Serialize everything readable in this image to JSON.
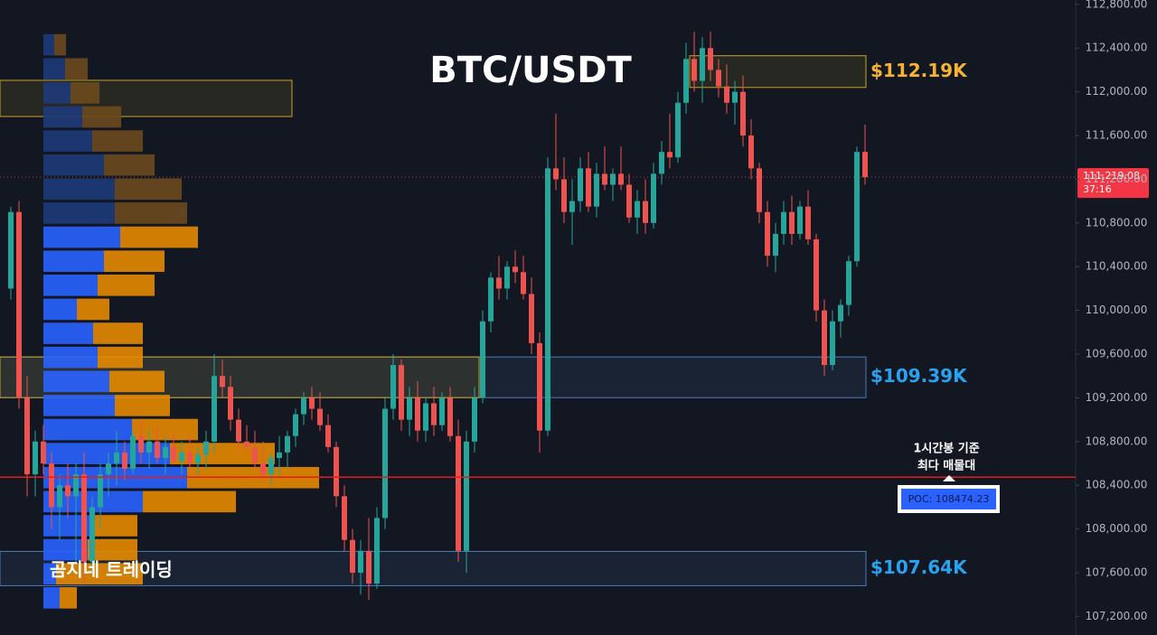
{
  "chart_data": {
    "type": "candlestick",
    "title": "BTC/USDT",
    "watermark": "곰지네 트레이딩",
    "annotation": [
      "1시간봉 기준",
      "최다 매물대"
    ],
    "ylim": [
      107030,
      112840
    ],
    "yticks": [
      {
        "value": 107200,
        "label": "107,200.00"
      },
      {
        "value": 107600,
        "label": "107,600.00"
      },
      {
        "value": 108000,
        "label": "108,000.00"
      },
      {
        "value": 108400,
        "label": "108,400.00"
      },
      {
        "value": 108800,
        "label": "108,800.00"
      },
      {
        "value": 109200,
        "label": "109,200.00"
      },
      {
        "value": 109600,
        "label": "109,600.00"
      },
      {
        "value": 110000,
        "label": "110,000.00"
      },
      {
        "value": 110400,
        "label": "110,400.00"
      },
      {
        "value": 110800,
        "label": "110,800.00"
      },
      {
        "value": 111200,
        "label": "111,200.00"
      },
      {
        "value": 111600,
        "label": "111,600.00"
      },
      {
        "value": 112000,
        "label": "112,000.00"
      },
      {
        "value": 112400,
        "label": "112,400.00"
      },
      {
        "value": 112800,
        "label": "112,800.00"
      }
    ],
    "up_color": "#26a69a",
    "down_color": "#ef5350",
    "candles": [
      [
        110200,
        110950,
        110100,
        110900
      ],
      [
        110900,
        111000,
        109100,
        109200
      ],
      [
        109200,
        109400,
        108300,
        108500
      ],
      [
        108500,
        108900,
        108300,
        108800
      ],
      [
        108800,
        108950,
        108500,
        108600
      ],
      [
        108600,
        108700,
        108000,
        108200
      ],
      [
        108200,
        108500,
        107900,
        108400
      ],
      [
        108400,
        108600,
        108100,
        108300
      ],
      [
        108300,
        108600,
        107700,
        108500
      ],
      [
        108500,
        108700,
        107500,
        107700
      ],
      [
        107700,
        108300,
        107600,
        108200
      ],
      [
        108200,
        108600,
        108000,
        108500
      ],
      [
        108500,
        108700,
        108300,
        108600
      ],
      [
        108600,
        108900,
        108400,
        108700
      ],
      [
        108700,
        108800,
        108450,
        108550
      ],
      [
        108550,
        108900,
        108500,
        108850
      ],
      [
        108850,
        109000,
        108600,
        108700
      ],
      [
        108700,
        108900,
        108550,
        108800
      ],
      [
        108800,
        108950,
        108600,
        108650
      ],
      [
        108650,
        108850,
        108500,
        108750
      ],
      [
        108750,
        108900,
        108600,
        108620
      ],
      [
        108620,
        108800,
        108500,
        108700
      ],
      [
        108700,
        108850,
        108550,
        108600
      ],
      [
        108600,
        108750,
        108500,
        108680
      ],
      [
        108680,
        108900,
        108550,
        108800
      ],
      [
        108800,
        109600,
        108700,
        109400
      ],
      [
        109400,
        109550,
        109200,
        109300
      ],
      [
        109300,
        109400,
        108900,
        109000
      ],
      [
        109000,
        109100,
        108700,
        108800
      ],
      [
        108800,
        108950,
        108700,
        108750
      ],
      [
        108750,
        108900,
        108550,
        108600
      ],
      [
        108600,
        108800,
        108450,
        108500
      ],
      [
        108500,
        108700,
        108400,
        108650
      ],
      [
        108650,
        108850,
        108500,
        108700
      ],
      [
        108700,
        108900,
        108550,
        108850
      ],
      [
        108850,
        109100,
        108750,
        109050
      ],
      [
        109050,
        109250,
        108950,
        109200
      ],
      [
        109200,
        109300,
        109000,
        109100
      ],
      [
        109100,
        109250,
        108900,
        108950
      ],
      [
        108950,
        109050,
        108700,
        108750
      ],
      [
        108750,
        108800,
        108200,
        108300
      ],
      [
        108300,
        108400,
        107800,
        107900
      ],
      [
        107900,
        108000,
        107500,
        107600
      ],
      [
        107600,
        107900,
        107400,
        107800
      ],
      [
        107800,
        108100,
        107350,
        107500
      ],
      [
        107500,
        108200,
        107450,
        108100
      ],
      [
        108100,
        109200,
        108000,
        109100
      ],
      [
        109100,
        109600,
        109000,
        109500
      ],
      [
        109500,
        109550,
        108900,
        109000
      ],
      [
        109000,
        109300,
        108850,
        109200
      ],
      [
        109200,
        109350,
        108800,
        108900
      ],
      [
        108900,
        109200,
        108800,
        109150
      ],
      [
        109150,
        109300,
        108850,
        108950
      ],
      [
        108950,
        109250,
        108900,
        109200
      ],
      [
        109200,
        109300,
        108800,
        108850
      ],
      [
        108850,
        109000,
        107700,
        107800
      ],
      [
        107800,
        108900,
        107600,
        108800
      ],
      [
        108800,
        109300,
        108700,
        109200
      ],
      [
        109200,
        110000,
        109150,
        109900
      ],
      [
        109900,
        110350,
        109800,
        110300
      ],
      [
        110300,
        110500,
        110100,
        110200
      ],
      [
        110200,
        110450,
        110100,
        110400
      ],
      [
        110400,
        110550,
        110250,
        110350
      ],
      [
        110350,
        110500,
        110100,
        110150
      ],
      [
        110150,
        110300,
        109600,
        109700
      ],
      [
        109700,
        109800,
        108700,
        108900
      ],
      [
        108900,
        111400,
        108850,
        111300
      ],
      [
        111300,
        111800,
        111100,
        111200
      ],
      [
        111200,
        111400,
        110800,
        110900
      ],
      [
        110900,
        111200,
        110600,
        111000
      ],
      [
        111000,
        111400,
        110900,
        111300
      ],
      [
        111300,
        111450,
        110900,
        110950
      ],
      [
        110950,
        111350,
        110850,
        111250
      ],
      [
        111250,
        111500,
        111100,
        111150
      ],
      [
        111150,
        111300,
        111000,
        111250
      ],
      [
        111250,
        111500,
        111100,
        111150
      ],
      [
        111150,
        111250,
        110800,
        110850
      ],
      [
        110850,
        111100,
        110700,
        111000
      ],
      [
        111000,
        111200,
        110700,
        110800
      ],
      [
        110800,
        111350,
        110750,
        111250
      ],
      [
        111250,
        111550,
        111150,
        111450
      ],
      [
        111450,
        111800,
        111300,
        111400
      ],
      [
        111400,
        112000,
        111350,
        111900
      ],
      [
        111900,
        112450,
        111800,
        112300
      ],
      [
        112300,
        112550,
        112000,
        112100
      ],
      [
        112100,
        112500,
        111900,
        112400
      ],
      [
        112400,
        112550,
        112100,
        112200
      ],
      [
        112200,
        112300,
        111950,
        112050
      ],
      [
        112050,
        112250,
        111800,
        111900
      ],
      [
        111900,
        112100,
        111700,
        112000
      ],
      [
        112000,
        112150,
        111500,
        111600
      ],
      [
        111600,
        111750,
        111200,
        111300
      ],
      [
        111300,
        111350,
        110800,
        110900
      ],
      [
        110900,
        111000,
        110400,
        110500
      ],
      [
        110500,
        110800,
        110350,
        110700
      ],
      [
        110700,
        111000,
        110600,
        110900
      ],
      [
        110900,
        111050,
        110600,
        110700
      ],
      [
        110700,
        111000,
        110650,
        110950
      ],
      [
        110950,
        111100,
        110600,
        110650
      ],
      [
        110650,
        110700,
        109900,
        110000
      ],
      [
        110000,
        110100,
        109400,
        109500
      ],
      [
        109500,
        110000,
        109450,
        109900
      ],
      [
        109900,
        110100,
        109750,
        110050
      ],
      [
        110050,
        110500,
        109950,
        110450
      ],
      [
        110450,
        111500,
        110400,
        111450
      ],
      [
        111450,
        111700,
        111150,
        111219.08
      ]
    ],
    "last_price": 111219.08,
    "last_price_label": "111,219.08",
    "countdown": "37:16",
    "poc": 108474.23,
    "poc_label": "POC: 108474.23",
    "poc_color": "#e01e1e",
    "zones": [
      {
        "top": 112330,
        "bottom": 112040,
        "color": "#c9a227",
        "label": "$112.19K",
        "label_color": "#f5b335"
      },
      {
        "top": 112105,
        "bottom": 111774,
        "color": "#c9a227"
      },
      {
        "top": 109574,
        "bottom": 109202,
        "color": "#4a7cb8",
        "label": "$109.39K",
        "label_color": "#29a3f0"
      },
      {
        "top": 109574,
        "bottom": 109202,
        "color": "#c9a227"
      },
      {
        "top": 107795,
        "bottom": 107481,
        "color": "#4a7cb8",
        "label": "$107.64K",
        "label_color": "#29a3f0"
      }
    ],
    "profile": {
      "xlim": [
        0,
        1232
      ],
      "bins": [
        107260,
        107480,
        107700,
        107920,
        108140,
        108360,
        108580,
        108800,
        109020,
        109240,
        109460,
        109680,
        109900,
        110120,
        110340,
        110560,
        110780,
        111000,
        111220,
        111440,
        111660,
        111880,
        112100,
        112320,
        112540
      ],
      "buy": [
        18,
        14,
        49,
        55,
        110,
        159,
        140,
        98,
        79,
        73,
        60,
        55,
        37,
        60,
        67,
        85,
        79,
        79,
        67,
        54,
        43,
        30,
        24,
        12
      ],
      "sell": [
        19,
        96,
        55,
        49,
        103,
        146,
        116,
        73,
        61,
        61,
        50,
        55,
        36,
        63,
        67,
        86,
        80,
        74,
        56,
        56,
        43,
        32,
        25,
        13
      ],
      "buy_color": "#2962ff",
      "sell_color": "#e68a00",
      "dim_buy_color": "#1e3a78",
      "dim_sell_color": "#6b4a1e",
      "value_area": [
        107260,
        110780
      ]
    }
  }
}
